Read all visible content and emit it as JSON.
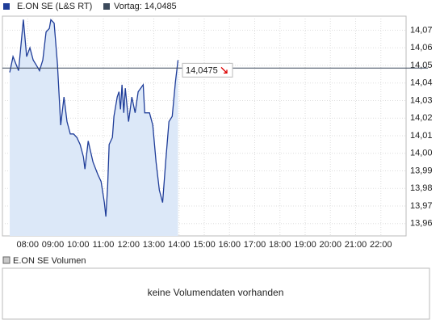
{
  "chart_data": {
    "type": "line",
    "legend": "E.ON SE (L&S RT)",
    "series": [
      {
        "name": "E.ON SE (L&S RT)",
        "color": "#1f3d99",
        "area_color": "#dce8f8",
        "x": [
          7.29,
          7.42,
          7.64,
          7.83,
          7.96,
          8.09,
          8.22,
          8.35,
          8.47,
          8.6,
          8.73,
          8.86,
          8.92,
          9.05,
          9.18,
          9.31,
          9.44,
          9.56,
          9.69,
          9.82,
          9.95,
          10.08,
          10.21,
          10.27,
          10.4,
          10.59,
          10.78,
          10.91,
          11.04,
          11.1,
          11.17,
          11.23,
          11.36,
          11.42,
          11.55,
          11.62,
          11.68,
          11.74,
          11.81,
          11.87,
          12,
          12.13,
          12.26,
          12.38,
          12.58,
          12.64,
          12.83,
          12.96,
          13.09,
          13.22,
          13.35,
          13.47,
          13.6,
          13.73,
          13.86,
          13.96
        ],
        "values": [
          14.046,
          14.055,
          14.047,
          14.076,
          14.055,
          14.06,
          14.053,
          14.05,
          14.047,
          14.053,
          14.069,
          14.071,
          14.076,
          14.074,
          14.051,
          14.016,
          14.032,
          14.018,
          14.011,
          14.011,
          14.009,
          14.005,
          13.998,
          13.991,
          14.007,
          13.995,
          13.988,
          13.984,
          13.972,
          13.964,
          13.981,
          14.005,
          14.009,
          14.021,
          14.032,
          14.035,
          14.025,
          14.039,
          14.023,
          14.037,
          14.018,
          14.032,
          14.023,
          14.035,
          14.039,
          14.023,
          14.023,
          14.016,
          13.995,
          13.979,
          13.972,
          13.995,
          14.018,
          14.021,
          14.041,
          14.053
        ]
      }
    ],
    "reference_line": {
      "name": "Vortag: 14,0485",
      "value": 14.0485,
      "color": "#3c4a5c"
    },
    "last_price": {
      "value": 14.0475,
      "label": "14,0475"
    },
    "xlim": [
      7,
      23
    ],
    "xticks": [
      {
        "value": 8,
        "label": "08:00"
      },
      {
        "value": 9,
        "label": "09:00"
      },
      {
        "value": 10,
        "label": "10:00"
      },
      {
        "value": 11,
        "label": "11:00"
      },
      {
        "value": 12,
        "label": "12:00"
      },
      {
        "value": 13,
        "label": "13:00"
      },
      {
        "value": 14,
        "label": "14:00"
      },
      {
        "value": 15,
        "label": "15:00"
      },
      {
        "value": 16,
        "label": "16:00"
      },
      {
        "value": 17,
        "label": "17:00"
      },
      {
        "value": 18,
        "label": "18:00"
      },
      {
        "value": 19,
        "label": "19:00"
      },
      {
        "value": 20,
        "label": "20:00"
      },
      {
        "value": 21,
        "label": "21:00"
      },
      {
        "value": 22,
        "label": "22:00"
      }
    ],
    "ylim": [
      13.953,
      14.078
    ],
    "yticks": [
      {
        "value": 13.96,
        "label": "13,96"
      },
      {
        "value": 13.97,
        "label": "13,97"
      },
      {
        "value": 13.98,
        "label": "13,98"
      },
      {
        "value": 13.99,
        "label": "13,99"
      },
      {
        "value": 14,
        "label": "14,00"
      },
      {
        "value": 14.01,
        "label": "14,01"
      },
      {
        "value": 14.02,
        "label": "14,02"
      },
      {
        "value": 14.03,
        "label": "14,03"
      },
      {
        "value": 14.04,
        "label": "14,04"
      },
      {
        "value": 14.05,
        "label": "14,05"
      },
      {
        "value": 14.06,
        "label": "14,06"
      },
      {
        "value": 14.07,
        "label": "14,07"
      }
    ],
    "grid": true
  },
  "volume_panel": {
    "legend": "E.ON SE Volumen",
    "color": "#c8c8c8",
    "message": "keine Volumendaten vorhanden"
  }
}
